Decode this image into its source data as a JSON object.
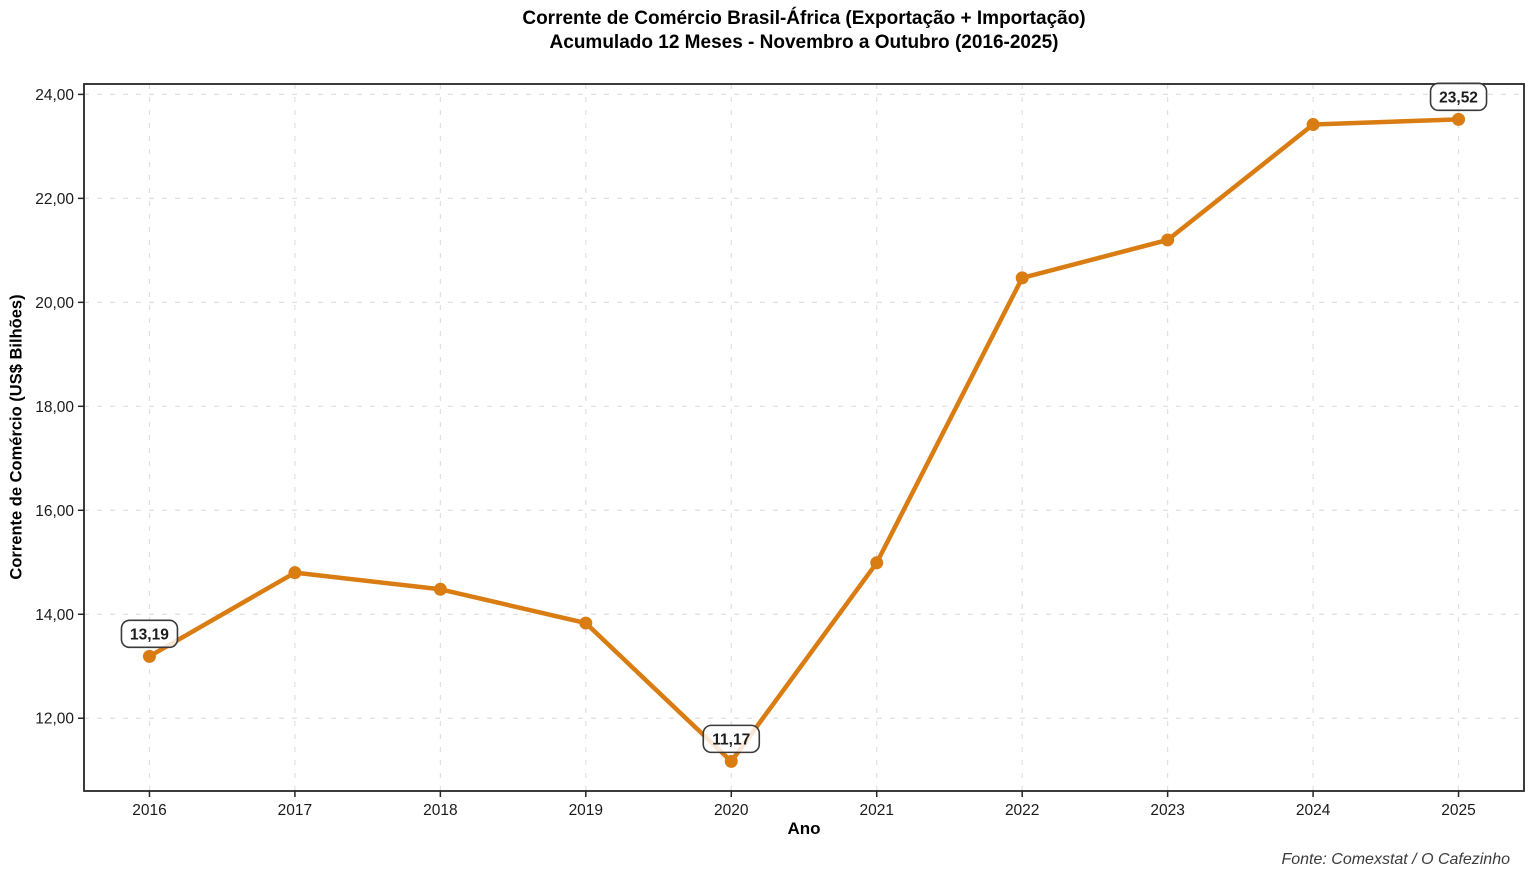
{
  "title": {
    "line1": "Corrente de Comércio Brasil-África (Exportação + Importação)",
    "line2": "Acumulado 12 Meses - Novembro a Outubro (2016-2025)"
  },
  "footer": {
    "source": "Fonte: Comexstat / O Cafezinho"
  },
  "chart_data": {
    "type": "line",
    "title": "Corrente de Comércio Brasil-África (Exportação + Importação)",
    "subtitle": "Acumulado 12 Meses - Novembro a Outubro (2016-2025)",
    "xlabel": "Ano",
    "ylabel": "Corrente de Comércio (US$ Bilhões)",
    "categories": [
      2016,
      2017,
      2018,
      2019,
      2020,
      2021,
      2022,
      2023,
      2024,
      2025
    ],
    "values": [
      13.19,
      14.8,
      14.48,
      13.83,
      11.17,
      14.99,
      20.47,
      21.2,
      23.42,
      23.52
    ],
    "annotations": [
      {
        "year": 2016,
        "value": 13.19,
        "label": "13,19"
      },
      {
        "year": 2020,
        "value": 11.17,
        "label": "11,17"
      },
      {
        "year": 2025,
        "value": 23.52,
        "label": "23,52"
      }
    ],
    "yticks": [
      {
        "value": 24,
        "label": "24,00"
      },
      {
        "value": 22,
        "label": "22,00"
      },
      {
        "value": 20,
        "label": "20,00"
      },
      {
        "value": 18,
        "label": "18,00"
      },
      {
        "value": 16,
        "label": "16,00"
      },
      {
        "value": 14,
        "label": "14,00"
      },
      {
        "value": 12,
        "label": "12,00"
      }
    ],
    "xticks": [
      "2016",
      "2017",
      "2018",
      "2019",
      "2020",
      "2021",
      "2022",
      "2023",
      "2024",
      "2025"
    ],
    "xlim": [
      2015.55,
      2025.45
    ],
    "ylim": [
      10.6,
      24.2
    ],
    "grid": true,
    "legend_position": "none",
    "line_color": "#D97C12",
    "marker_color": "#D97C12",
    "grid_color": "#DFDFDF",
    "axis_color": "#262626",
    "tick_text_color": "#1A1A1A",
    "annotation_border_color": "#3A3A3A",
    "annotation_text_color": "#1C1C1C"
  }
}
